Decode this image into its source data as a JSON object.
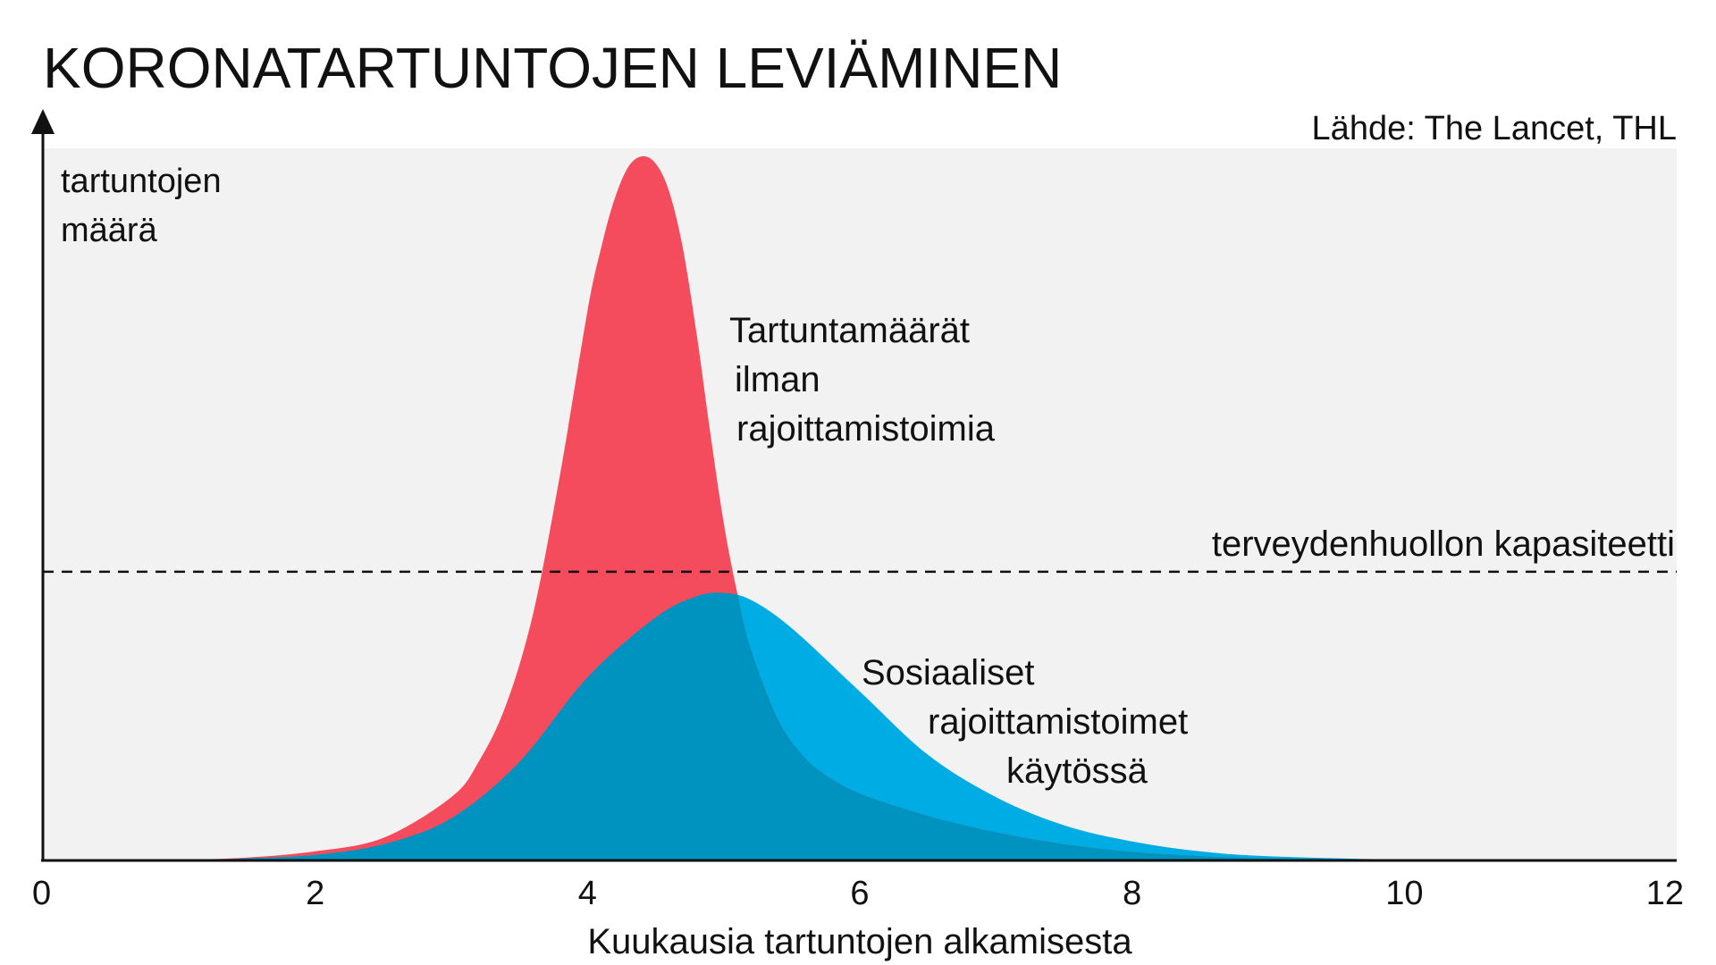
{
  "chart_data": {
    "type": "area",
    "title": "KORONATARTUNTOJEN LEVIÄMINEN",
    "source": "Lähde: The Lancet, THL",
    "xlabel": "Kuukausia tartuntojen alkamisesta",
    "ylabel_lines": [
      "tartuntojen",
      "määrä"
    ],
    "xlim": [
      0,
      12
    ],
    "ylim": [
      0,
      100
    ],
    "x_ticks": [
      0,
      2,
      4,
      6,
      8,
      10,
      12
    ],
    "grid": false,
    "capacity": {
      "label": "terveydenhuollon kapasiteetti",
      "value": 41
    },
    "series": [
      {
        "key": "no_measures",
        "color": "#F44C5C",
        "label_lines": [
          "Tartuntamäärät",
          "ilman",
          "rajoittamistoimia"
        ],
        "x": [
          0,
          0.5,
          1.0,
          1.5,
          2.0,
          2.5,
          3.0,
          3.2,
          3.4,
          3.6,
          3.8,
          4.0,
          4.1,
          4.2,
          4.3,
          4.4,
          4.5,
          4.6,
          4.7,
          4.8,
          4.9,
          5.0,
          5.1,
          5.2,
          5.4,
          5.6,
          5.8,
          6.0,
          6.3,
          6.6,
          7.0,
          7.5,
          8.0,
          8.5,
          9.0,
          10.0,
          11.0,
          12.0
        ],
        "y": [
          0,
          0,
          0.1,
          0.4,
          1.3,
          3.2,
          9,
          14,
          22,
          35,
          55,
          78,
          87,
          94,
          98.5,
          100,
          99,
          95,
          87,
          75,
          61,
          48,
          38,
          30,
          20,
          14.5,
          11.5,
          9.5,
          7.5,
          5.8,
          4,
          2.3,
          1.2,
          0.6,
          0.3,
          0.1,
          0,
          0
        ]
      },
      {
        "key": "with_measures",
        "color": "#00ACE4",
        "overlap_color": "#0093BF",
        "label_lines": [
          "Sosiaaliset",
          "rajoittamistoimet",
          "käytössä"
        ],
        "x": [
          0,
          0.5,
          1.0,
          1.5,
          2.0,
          2.5,
          3.0,
          3.5,
          4.0,
          4.5,
          4.8,
          5.0,
          5.2,
          5.5,
          6.0,
          6.5,
          7.0,
          7.5,
          8.0,
          8.5,
          9.0,
          10.0,
          11.0,
          12.0
        ],
        "y": [
          0,
          0,
          0,
          0.3,
          0.8,
          2.3,
          6,
          14,
          26,
          34.5,
          37.5,
          38,
          37,
          33,
          24,
          15,
          9,
          5,
          2.7,
          1.3,
          0.6,
          0.1,
          0,
          0
        ]
      }
    ]
  }
}
